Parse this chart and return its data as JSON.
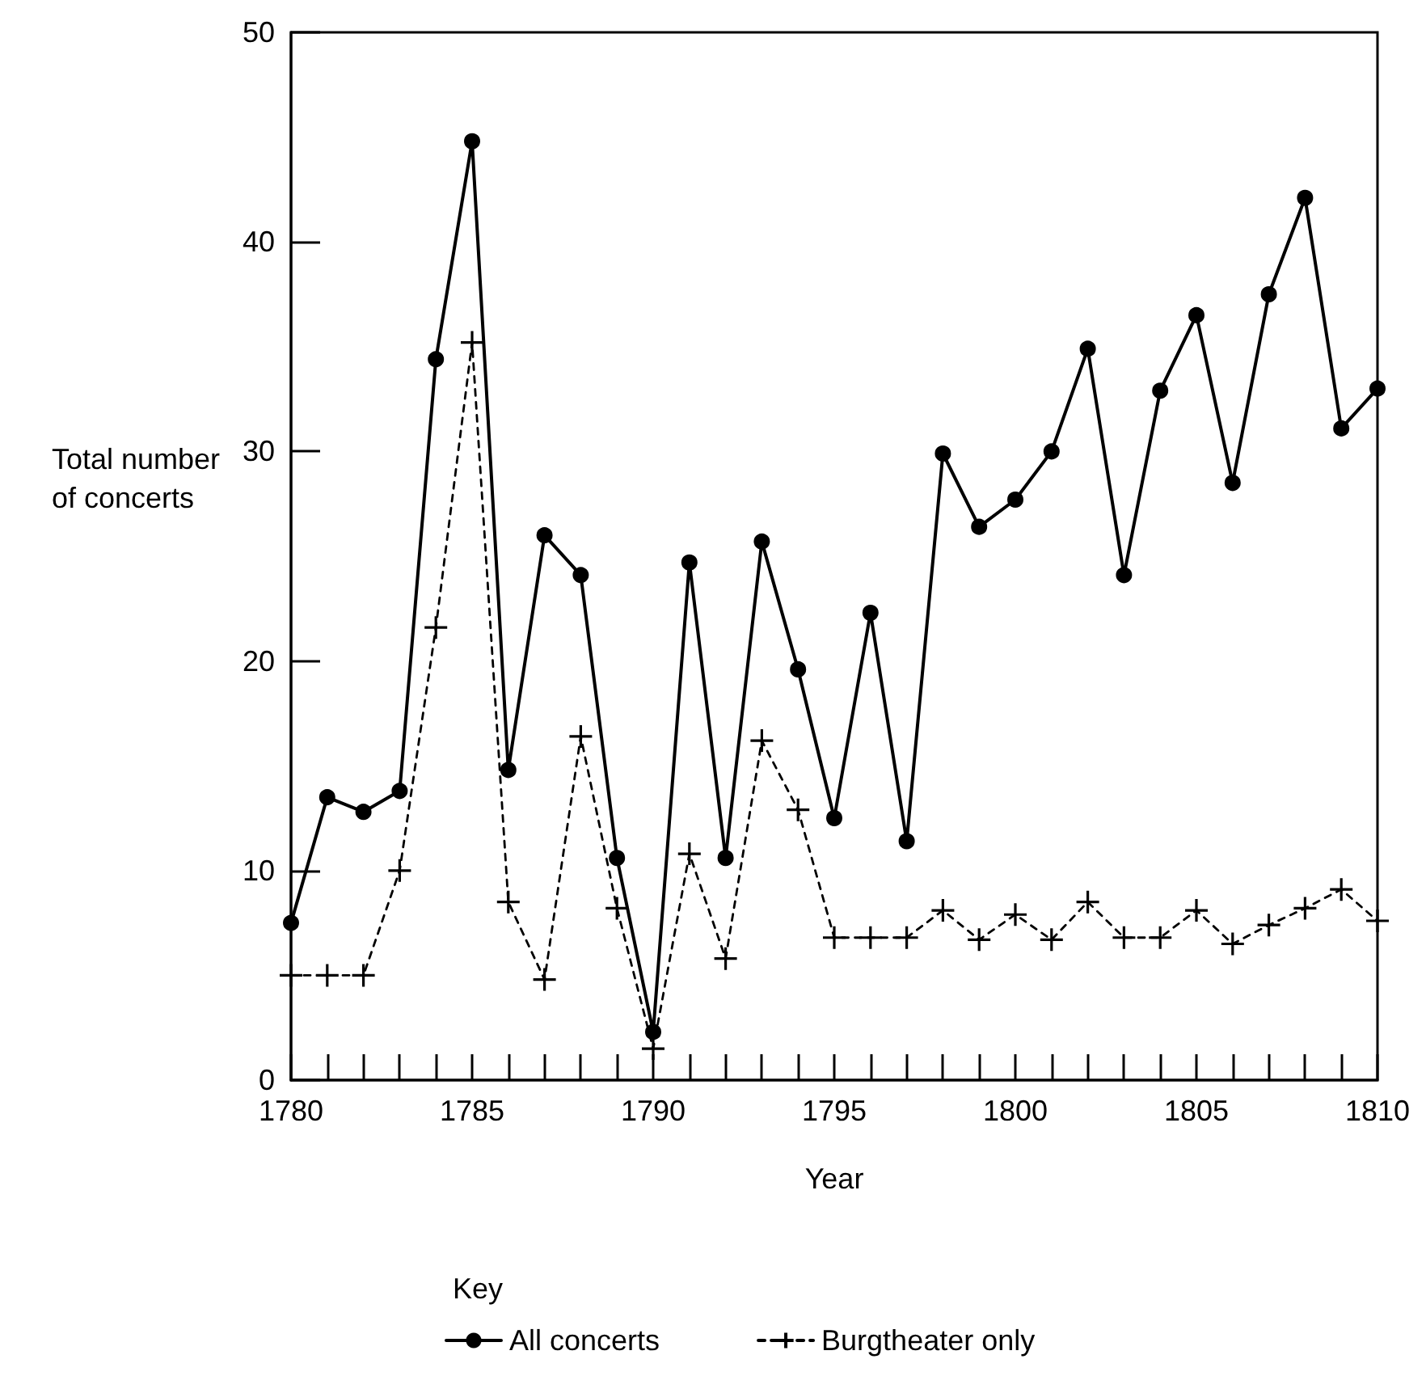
{
  "chart_data": {
    "type": "line",
    "xlabel": "Year",
    "ylabel": "Total number of concerts",
    "legend_title": "Key",
    "legend": "bottom",
    "grid": false,
    "x": [
      1780,
      1781,
      1782,
      1783,
      1784,
      1785,
      1786,
      1787,
      1788,
      1789,
      1790,
      1791,
      1792,
      1793,
      1794,
      1795,
      1796,
      1797,
      1798,
      1799,
      1800,
      1801,
      1802,
      1803,
      1804,
      1805,
      1806,
      1807,
      1808,
      1809,
      1810
    ],
    "xlim": [
      1780,
      1810
    ],
    "xticks": [
      1780,
      {
        "value": 1781,
        "label": null
      },
      {
        "value": 1782,
        "label": null
      },
      {
        "value": 1783,
        "label": null
      },
      {
        "value": 1784,
        "label": null
      },
      1785,
      {
        "value": 1786,
        "label": null
      },
      {
        "value": 1787,
        "label": null
      },
      {
        "value": 1788,
        "label": null
      },
      {
        "value": 1789,
        "label": null
      },
      1790,
      {
        "value": 1791,
        "label": null
      },
      {
        "value": 1792,
        "label": null
      },
      {
        "value": 1793,
        "label": null
      },
      {
        "value": 1794,
        "label": null
      },
      1795,
      {
        "value": 1796,
        "label": null
      },
      {
        "value": 1797,
        "label": null
      },
      {
        "value": 1798,
        "label": null
      },
      {
        "value": 1799,
        "label": null
      },
      1800,
      {
        "value": 1801,
        "label": null
      },
      {
        "value": 1802,
        "label": null
      },
      {
        "value": 1803,
        "label": null
      },
      {
        "value": 1804,
        "label": null
      },
      1805,
      {
        "value": 1806,
        "label": null
      },
      {
        "value": 1807,
        "label": null
      },
      {
        "value": 1808,
        "label": null
      },
      {
        "value": 1809,
        "label": null
      },
      1810
    ],
    "ylim": [
      0,
      50
    ],
    "yticks": [
      0,
      10,
      20,
      30,
      40,
      50
    ],
    "series": [
      {
        "name": "All concerts",
        "color": "#000000",
        "marker": "circle",
        "line_style": "solid",
        "values": [
          7.5,
          13.5,
          12.8,
          13.8,
          34.4,
          44.8,
          14.8,
          26.0,
          24.1,
          10.6,
          2.3,
          24.7,
          10.6,
          25.7,
          19.6,
          12.5,
          22.3,
          11.4,
          29.9,
          26.4,
          27.7,
          30.0,
          34.9,
          24.1,
          32.9,
          36.5,
          28.5,
          37.5,
          42.1,
          31.1,
          33.0
        ]
      },
      {
        "name": "Burgtheater only",
        "color": "#000000",
        "marker": "cross",
        "line_style": "dashed",
        "values": [
          5.0,
          5.0,
          5.0,
          10.0,
          21.6,
          35.2,
          8.5,
          4.8,
          16.4,
          8.2,
          1.5,
          10.8,
          5.8,
          16.2,
          12.9,
          6.8,
          6.8,
          6.8,
          8.1,
          6.7,
          7.9,
          6.7,
          8.5,
          6.8,
          6.8,
          8.1,
          6.5,
          7.4,
          8.2,
          9.1,
          7.6
        ]
      }
    ]
  }
}
